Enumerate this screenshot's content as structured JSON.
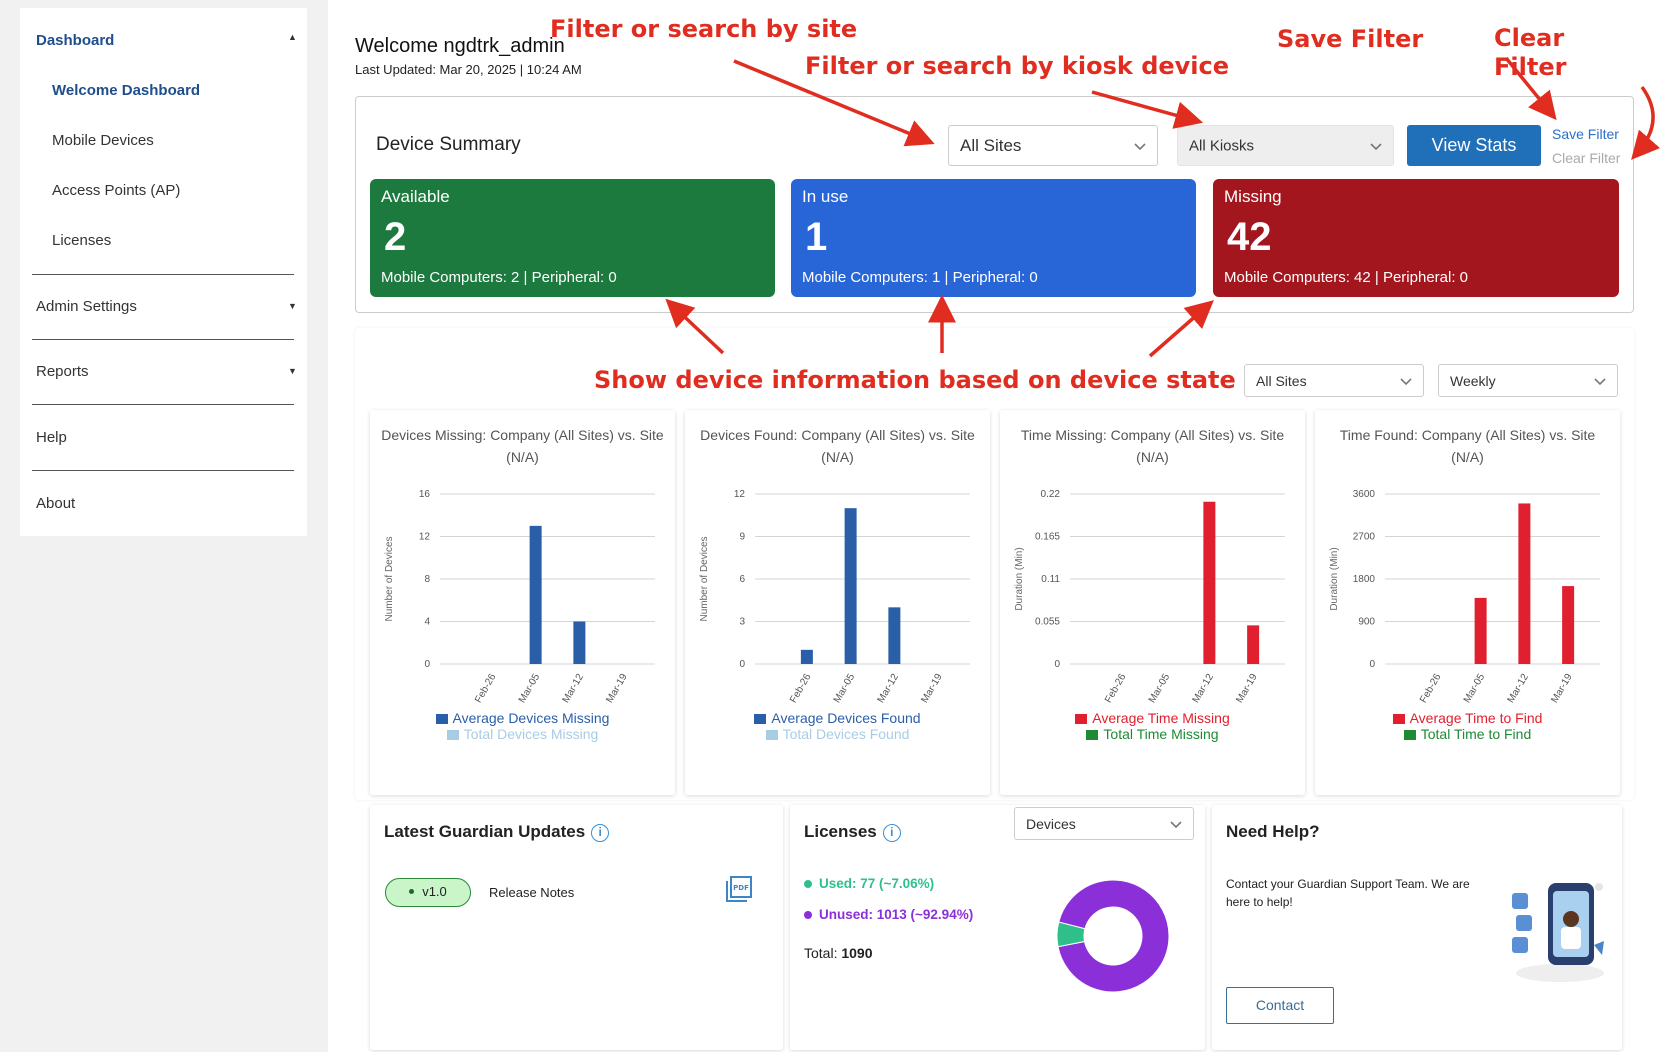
{
  "sidebar": {
    "dashboard_label": "Dashboard",
    "items": [
      {
        "label": "Welcome Dashboard"
      },
      {
        "label": "Mobile Devices"
      },
      {
        "label": "Access Points (AP)"
      },
      {
        "label": "Licenses"
      }
    ],
    "admin_settings_label": "Admin Settings",
    "reports_label": "Reports",
    "help_label": "Help",
    "about_label": "About"
  },
  "header": {
    "welcome": "Welcome ngdtrk_admin",
    "last_updated": "Last Updated: Mar 20, 2025 | 10:24 AM"
  },
  "device_summary": {
    "title": "Device Summary",
    "site_select": "All Sites",
    "kiosk_select": "All Kiosks",
    "view_stats": "View Stats",
    "save_filter": "Save Filter",
    "clear_filter": "Clear Filter",
    "cards": [
      {
        "title": "Available",
        "count": "2",
        "sub": "Mobile Computers: 2 | Peripheral: 0",
        "color": "#1d7a3e"
      },
      {
        "title": "In use",
        "count": "1",
        "sub": "Mobile Computers: 1 | Peripheral: 0",
        "color": "#2866d8"
      },
      {
        "title": "Missing",
        "count": "42",
        "sub": "Mobile Computers: 42 | Peripheral: 0",
        "color": "#a4161d"
      }
    ]
  },
  "stats_filters": {
    "site": "All Sites",
    "period": "Weekly"
  },
  "annotations": {
    "site": "Filter or search by site",
    "kiosk": "Filter or search by kiosk device",
    "save": "Save Filter",
    "clear_1": "Clear",
    "clear_2": "Filter",
    "state": "Show device information based on device state"
  },
  "chart_data": [
    {
      "type": "bar",
      "title": "Devices Missing: Company (All Sites) vs. Site (N/A)",
      "categories": [
        "Feb-26",
        "Mar-05",
        "Mar-12",
        "Mar-19"
      ],
      "ylabel": "Number of Devices",
      "yticks": [
        "0",
        "4",
        "8",
        "12",
        "16"
      ],
      "ylim": [
        0,
        16
      ],
      "series": [
        {
          "name": "Average Devices Missing",
          "values": [
            0,
            13,
            4,
            0
          ],
          "color": "#2a5fa8"
        },
        {
          "name": "Total Devices Missing",
          "values": [
            0,
            0,
            0,
            0
          ],
          "color": "#a7cde3"
        }
      ]
    },
    {
      "type": "bar",
      "title": "Devices Found: Company (All Sites) vs. Site (N/A)",
      "categories": [
        "Feb-26",
        "Mar-05",
        "Mar-12",
        "Mar-19"
      ],
      "ylabel": "Number of Devices",
      "yticks": [
        "0",
        "3",
        "6",
        "9",
        "12"
      ],
      "ylim": [
        0,
        12
      ],
      "series": [
        {
          "name": "Average Devices Found",
          "values": [
            1,
            11,
            4,
            0
          ],
          "color": "#2a5fa8"
        },
        {
          "name": "Total Devices Found",
          "values": [
            0,
            0,
            0,
            0
          ],
          "color": "#a7cde3"
        }
      ]
    },
    {
      "type": "bar",
      "title": "Time Missing: Company (All Sites) vs. Site (N/A)",
      "categories": [
        "Feb-26",
        "Mar-05",
        "Mar-12",
        "Mar-19"
      ],
      "ylabel": "Duration (Min)",
      "yticks": [
        "0",
        "0.055",
        "0.11",
        "0.165",
        "0.22"
      ],
      "ylim": [
        0,
        0.22
      ],
      "series": [
        {
          "name": "Average Time Missing",
          "values": [
            0,
            0,
            0.21,
            0.05
          ],
          "color": "#e0202e"
        },
        {
          "name": "Total Time Missing",
          "values": [
            0,
            0,
            0,
            0
          ],
          "color": "#1f8a34"
        }
      ]
    },
    {
      "type": "bar",
      "title": "Time Found: Company (All Sites) vs. Site (N/A)",
      "categories": [
        "Feb-26",
        "Mar-05",
        "Mar-12",
        "Mar-19"
      ],
      "ylabel": "Duration (Min)",
      "yticks": [
        "0",
        "900",
        "1800",
        "2700",
        "3600"
      ],
      "ylim": [
        0,
        3600
      ],
      "series": [
        {
          "name": "Average Time to Find",
          "values": [
            0,
            1400,
            3400,
            1650
          ],
          "color": "#e0202e"
        },
        {
          "name": "Total Time to Find",
          "values": [
            0,
            0,
            0,
            0
          ],
          "color": "#1f8a34"
        }
      ]
    }
  ],
  "updates": {
    "title": "Latest Guardian Updates",
    "version": "v1.0",
    "release_notes": "Release Notes",
    "pdf_icon_text": "PDF"
  },
  "licenses": {
    "title": "Licenses",
    "select": "Devices",
    "used": "Used: 77 (~7.06%)",
    "unused": "Unused: 1013 (~92.94%)",
    "total_label": "Total:",
    "total_value": "1090",
    "used_value": 77,
    "unused_value": 1013,
    "used_color": "#2fbf8a",
    "unused_color": "#8b2fd9"
  },
  "help": {
    "title": "Need Help?",
    "text": "Contact your Guardian Support Team. We are here to help!",
    "contact": "Contact"
  }
}
